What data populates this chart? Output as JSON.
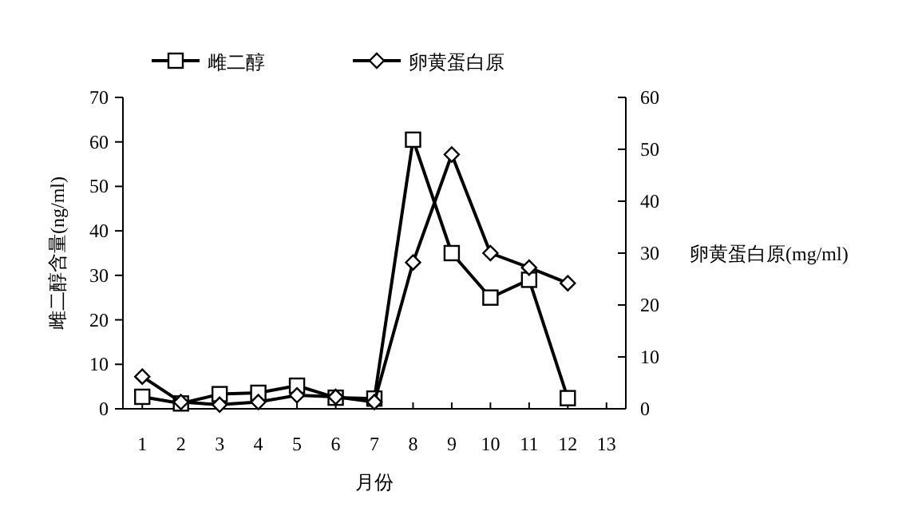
{
  "chart_data": {
    "type": "line",
    "xlabel": "月份",
    "ylabel": "雌二醇含量(ng/ml)",
    "y2label": "卵黄蛋白原(mg/ml)",
    "x": [
      1,
      2,
      3,
      4,
      5,
      6,
      7,
      8,
      9,
      10,
      11,
      12
    ],
    "xlim": [
      0.5,
      13.5
    ],
    "xticks": [
      1,
      2,
      3,
      4,
      5,
      6,
      7,
      8,
      9,
      10,
      11,
      12,
      13
    ],
    "ylim": [
      0,
      70
    ],
    "yticks": [
      0,
      10,
      20,
      30,
      40,
      50,
      60,
      70
    ],
    "y2lim": [
      0,
      60
    ],
    "y2ticks": [
      0,
      10,
      20,
      30,
      40,
      50,
      60
    ],
    "grid": false,
    "legend": "top",
    "series": [
      {
        "name": "雌二醇",
        "color": "#000000",
        "marker": "square",
        "values": [
          2.7,
          1.2,
          3.3,
          3.6,
          5.2,
          2.5,
          2.3,
          60.5,
          35,
          25,
          29,
          2.4
        ]
      },
      {
        "name": "卵黄蛋白原",
        "color": "#000000",
        "marker": "diamond",
        "axis": "y2",
        "values": [
          6.2,
          1.3,
          0.8,
          1.3,
          2.6,
          2.3,
          1.3,
          28.2,
          49,
          30,
          27.2,
          24.2
        ]
      }
    ]
  }
}
